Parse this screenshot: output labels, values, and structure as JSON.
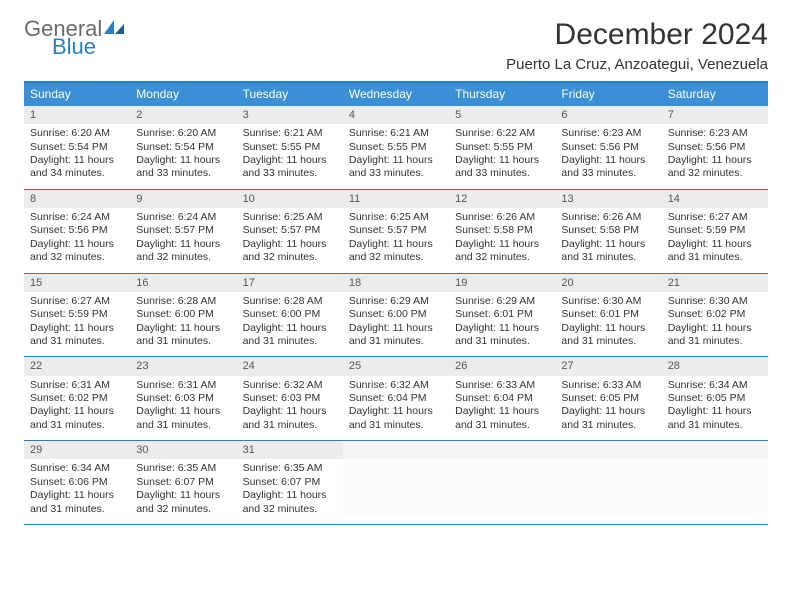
{
  "brand": {
    "word1": "General",
    "word2": "Blue"
  },
  "colors": {
    "brand_gray": "#6b6b6b",
    "brand_blue": "#2a7fbf",
    "header_bg": "#3b8fd4",
    "rule": "#2a7fbf",
    "daynum_bg": "#ececec",
    "text": "#333333"
  },
  "title": "December 2024",
  "location": "Puerto La Cruz, Anzoategui, Venezuela",
  "day_headers": [
    "Sunday",
    "Monday",
    "Tuesday",
    "Wednesday",
    "Thursday",
    "Friday",
    "Saturday"
  ],
  "labels": {
    "sunrise": "Sunrise:",
    "sunset": "Sunset:",
    "daylight": "Daylight:"
  },
  "weeks": [
    [
      {
        "n": "1",
        "sr": "6:20 AM",
        "ss": "5:54 PM",
        "dl": "11 hours and 34 minutes."
      },
      {
        "n": "2",
        "sr": "6:20 AM",
        "ss": "5:54 PM",
        "dl": "11 hours and 33 minutes."
      },
      {
        "n": "3",
        "sr": "6:21 AM",
        "ss": "5:55 PM",
        "dl": "11 hours and 33 minutes."
      },
      {
        "n": "4",
        "sr": "6:21 AM",
        "ss": "5:55 PM",
        "dl": "11 hours and 33 minutes."
      },
      {
        "n": "5",
        "sr": "6:22 AM",
        "ss": "5:55 PM",
        "dl": "11 hours and 33 minutes."
      },
      {
        "n": "6",
        "sr": "6:23 AM",
        "ss": "5:56 PM",
        "dl": "11 hours and 33 minutes."
      },
      {
        "n": "7",
        "sr": "6:23 AM",
        "ss": "5:56 PM",
        "dl": "11 hours and 32 minutes."
      }
    ],
    [
      {
        "n": "8",
        "sr": "6:24 AM",
        "ss": "5:56 PM",
        "dl": "11 hours and 32 minutes."
      },
      {
        "n": "9",
        "sr": "6:24 AM",
        "ss": "5:57 PM",
        "dl": "11 hours and 32 minutes."
      },
      {
        "n": "10",
        "sr": "6:25 AM",
        "ss": "5:57 PM",
        "dl": "11 hours and 32 minutes."
      },
      {
        "n": "11",
        "sr": "6:25 AM",
        "ss": "5:57 PM",
        "dl": "11 hours and 32 minutes."
      },
      {
        "n": "12",
        "sr": "6:26 AM",
        "ss": "5:58 PM",
        "dl": "11 hours and 32 minutes."
      },
      {
        "n": "13",
        "sr": "6:26 AM",
        "ss": "5:58 PM",
        "dl": "11 hours and 31 minutes."
      },
      {
        "n": "14",
        "sr": "6:27 AM",
        "ss": "5:59 PM",
        "dl": "11 hours and 31 minutes."
      }
    ],
    [
      {
        "n": "15",
        "sr": "6:27 AM",
        "ss": "5:59 PM",
        "dl": "11 hours and 31 minutes."
      },
      {
        "n": "16",
        "sr": "6:28 AM",
        "ss": "6:00 PM",
        "dl": "11 hours and 31 minutes."
      },
      {
        "n": "17",
        "sr": "6:28 AM",
        "ss": "6:00 PM",
        "dl": "11 hours and 31 minutes."
      },
      {
        "n": "18",
        "sr": "6:29 AM",
        "ss": "6:00 PM",
        "dl": "11 hours and 31 minutes."
      },
      {
        "n": "19",
        "sr": "6:29 AM",
        "ss": "6:01 PM",
        "dl": "11 hours and 31 minutes."
      },
      {
        "n": "20",
        "sr": "6:30 AM",
        "ss": "6:01 PM",
        "dl": "11 hours and 31 minutes."
      },
      {
        "n": "21",
        "sr": "6:30 AM",
        "ss": "6:02 PM",
        "dl": "11 hours and 31 minutes."
      }
    ],
    [
      {
        "n": "22",
        "sr": "6:31 AM",
        "ss": "6:02 PM",
        "dl": "11 hours and 31 minutes."
      },
      {
        "n": "23",
        "sr": "6:31 AM",
        "ss": "6:03 PM",
        "dl": "11 hours and 31 minutes."
      },
      {
        "n": "24",
        "sr": "6:32 AM",
        "ss": "6:03 PM",
        "dl": "11 hours and 31 minutes."
      },
      {
        "n": "25",
        "sr": "6:32 AM",
        "ss": "6:04 PM",
        "dl": "11 hours and 31 minutes."
      },
      {
        "n": "26",
        "sr": "6:33 AM",
        "ss": "6:04 PM",
        "dl": "11 hours and 31 minutes."
      },
      {
        "n": "27",
        "sr": "6:33 AM",
        "ss": "6:05 PM",
        "dl": "11 hours and 31 minutes."
      },
      {
        "n": "28",
        "sr": "6:34 AM",
        "ss": "6:05 PM",
        "dl": "11 hours and 31 minutes."
      }
    ],
    [
      {
        "n": "29",
        "sr": "6:34 AM",
        "ss": "6:06 PM",
        "dl": "11 hours and 31 minutes."
      },
      {
        "n": "30",
        "sr": "6:35 AM",
        "ss": "6:07 PM",
        "dl": "11 hours and 32 minutes."
      },
      {
        "n": "31",
        "sr": "6:35 AM",
        "ss": "6:07 PM",
        "dl": "11 hours and 32 minutes."
      },
      {
        "empty": true
      },
      {
        "empty": true
      },
      {
        "empty": true
      },
      {
        "empty": true
      }
    ]
  ]
}
